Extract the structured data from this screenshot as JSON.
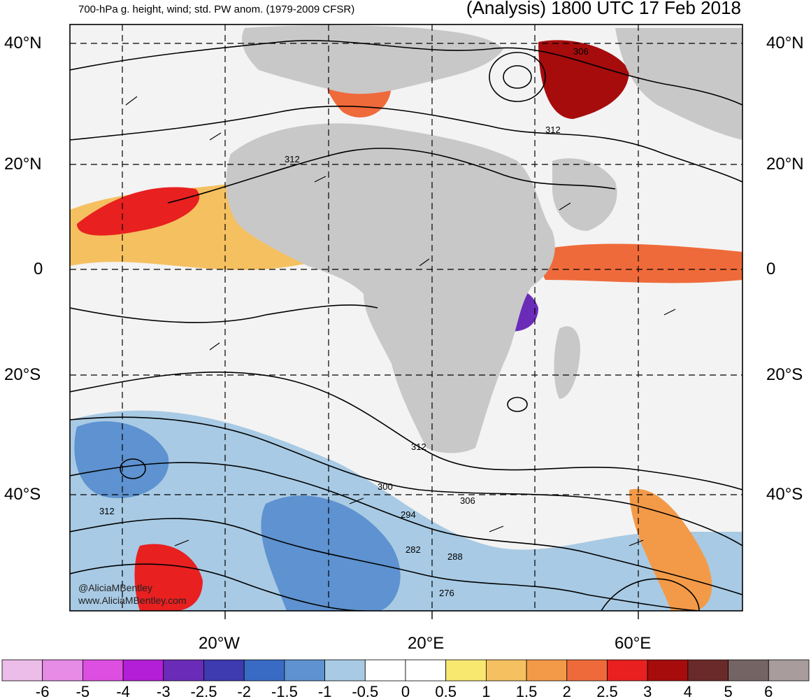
{
  "header": {
    "title_left": "700-hPa g. height, wind; std. PW anom. (1979-2009 CFSR)",
    "title_right": "(Analysis) 1800 UTC 17 Feb 2018"
  },
  "map": {
    "lat_labels": [
      "40°N",
      "20°N",
      "0",
      "20°S",
      "40°S"
    ],
    "lon_labels": [
      "20°W",
      "20°E",
      "60°E"
    ],
    "contour_labels": [
      "306",
      "312",
      "312",
      "312",
      "300",
      "306",
      "294",
      "282",
      "288",
      "276",
      "312"
    ],
    "watermark": [
      "@AliciaMBentley",
      "www.AliciaMBentley.com"
    ]
  },
  "colorbar": {
    "labels": [
      "-6",
      "-5",
      "-4",
      "-3",
      "-2.5",
      "-2",
      "-1.5",
      "-1",
      "-0.5",
      "0",
      "0.5",
      "1",
      "1.5",
      "2",
      "2.5",
      "3",
      "4",
      "5",
      "6"
    ],
    "colors": [
      "#ecbde8",
      "#e68be6",
      "#dc4fe0",
      "#b21fd6",
      "#6a2cb8",
      "#3e3ab0",
      "#3a6bc4",
      "#5e92d0",
      "#a8cae4",
      "#ffffff",
      "#ffffff",
      "#f8e870",
      "#f5c060",
      "#f39a48",
      "#ef6a3a",
      "#e82020",
      "#a60c0c",
      "#6a2a2a",
      "#746464",
      "#a89c9c"
    ]
  }
}
